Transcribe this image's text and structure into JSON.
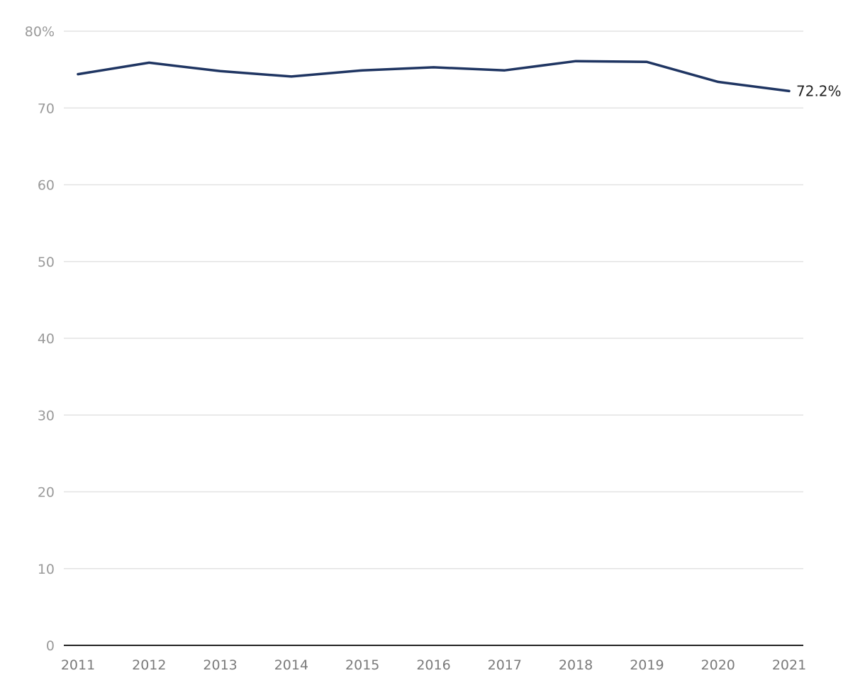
{
  "chart_data": {
    "type": "line",
    "title": "",
    "xlabel": "",
    "ylabel": "",
    "x": [
      "2011",
      "2012",
      "2013",
      "2014",
      "2015",
      "2016",
      "2017",
      "2018",
      "2019",
      "2020",
      "2021"
    ],
    "series": [
      {
        "values": [
          74.4,
          75.9,
          74.8,
          74.1,
          74.9,
          75.3,
          74.9,
          76.1,
          76.0,
          73.4,
          72.2
        ],
        "color": "#1f3562"
      }
    ],
    "ylim": [
      0,
      80
    ],
    "yticks": [
      {
        "value": 0,
        "label": "0"
      },
      {
        "value": 10,
        "label": "10"
      },
      {
        "value": 20,
        "label": "20"
      },
      {
        "value": 30,
        "label": "30"
      },
      {
        "value": 40,
        "label": "40"
      },
      {
        "value": 50,
        "label": "50"
      },
      {
        "value": 60,
        "label": "60"
      },
      {
        "value": 70,
        "label": "70"
      },
      {
        "value": 80,
        "label": "80%"
      }
    ],
    "end_label": "72.2%",
    "grid": true,
    "legend": "none"
  }
}
